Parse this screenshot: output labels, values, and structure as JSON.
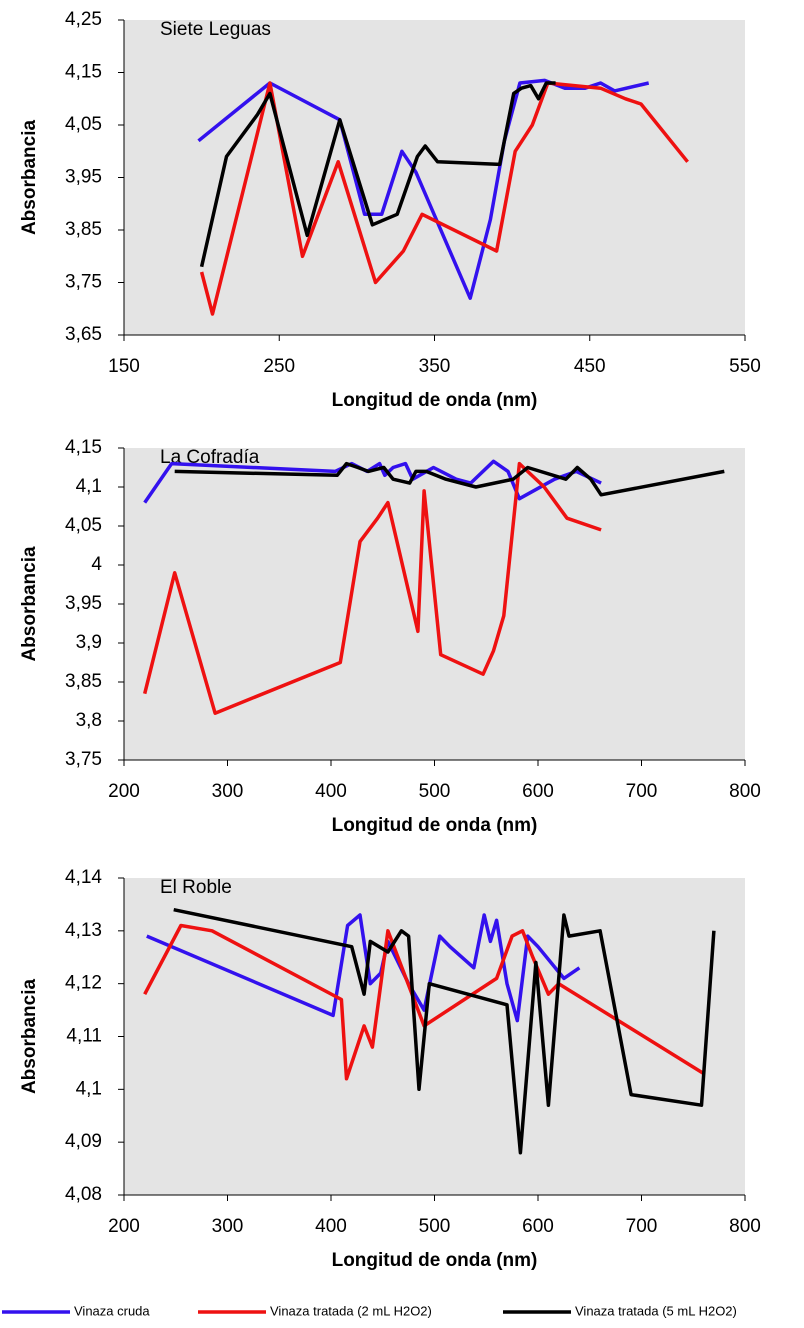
{
  "chart_data": [
    {
      "type": "line",
      "title": "Siete Leguas",
      "xlabel": "Longitud de onda (nm)",
      "ylabel": "Absorbancia",
      "xlim": [
        150,
        550
      ],
      "xticks": [
        150,
        250,
        350,
        450,
        550
      ],
      "ylim": [
        3.65,
        4.25
      ],
      "yticks": [
        {
          "value": 3.65,
          "label": "3,65"
        },
        {
          "value": 3.75,
          "label": "3,75"
        },
        {
          "value": 3.85,
          "label": "3,85"
        },
        {
          "value": 3.95,
          "label": "3,95"
        },
        {
          "value": 4.05,
          "label": "4,05"
        },
        {
          "value": 4.15,
          "label": "4,15"
        },
        {
          "value": 4.25,
          "label": "4,25"
        }
      ],
      "series": [
        {
          "name": "Vinaza cruda",
          "color": "#3311ee",
          "x": [
            198,
            244,
            289,
            305,
            316,
            329,
            338,
            373,
            386,
            395,
            405,
            421,
            434,
            447,
            457,
            466,
            488
          ],
          "values": [
            4.02,
            4.13,
            4.06,
            3.88,
            3.88,
            4.0,
            3.96,
            3.72,
            3.87,
            4.02,
            4.13,
            4.135,
            4.12,
            4.12,
            4.13,
            4.115,
            4.13
          ]
        },
        {
          "name": "Vinaza tratada (2 mL H2O2)",
          "color": "#ee1111",
          "x": [
            200,
            207,
            244,
            265,
            288,
            312,
            330,
            342,
            390,
            402,
            413,
            423,
            457,
            473,
            483,
            513
          ],
          "values": [
            3.77,
            3.69,
            4.13,
            3.8,
            3.98,
            3.75,
            3.81,
            3.88,
            3.81,
            4.0,
            4.05,
            4.13,
            4.12,
            4.1,
            4.09,
            3.98
          ]
        },
        {
          "name": "Vinaza tratada (5 mL H2O2)",
          "color": "#000000",
          "x": [
            200,
            216,
            236,
            244,
            268,
            289,
            310,
            326,
            339,
            344,
            352,
            392,
            401,
            406,
            412,
            417,
            422,
            428
          ],
          "values": [
            3.78,
            3.99,
            4.07,
            4.11,
            3.84,
            4.06,
            3.86,
            3.88,
            3.99,
            4.01,
            3.98,
            3.975,
            4.11,
            4.12,
            4.125,
            4.1,
            4.13,
            4.13
          ]
        }
      ]
    },
    {
      "type": "line",
      "title": "La Cofradía",
      "xlabel": "Longitud de onda (nm)",
      "ylabel": "Absorbancia",
      "xlim": [
        200,
        800
      ],
      "xticks": [
        200,
        300,
        400,
        500,
        600,
        700,
        800
      ],
      "ylim": [
        3.75,
        4.15
      ],
      "yticks": [
        {
          "value": 3.75,
          "label": "3,75"
        },
        {
          "value": 3.8,
          "label": "3,8"
        },
        {
          "value": 3.85,
          "label": "3,85"
        },
        {
          "value": 3.9,
          "label": "3,9"
        },
        {
          "value": 3.95,
          "label": "3,95"
        },
        4,
        {
          "value": 4.05,
          "label": "4,05"
        },
        {
          "value": 4.1,
          "label": "4,1"
        },
        {
          "value": 4.15,
          "label": "4,15"
        }
      ],
      "series": [
        {
          "color": "#3311ee",
          "x": [
            220,
            246,
            404,
            420,
            435,
            447,
            452,
            460,
            472,
            479,
            499,
            521,
            535,
            557,
            571,
            582,
            616,
            637,
            661
          ],
          "values": [
            4.08,
            4.13,
            4.12,
            4.13,
            4.12,
            4.13,
            4.115,
            4.125,
            4.13,
            4.11,
            4.125,
            4.11,
            4.105,
            4.133,
            4.12,
            4.085,
            4.11,
            4.12,
            4.105
          ]
        },
        {
          "color": "#ee1111",
          "x": [
            220,
            249,
            288,
            409,
            428,
            445,
            455,
            484,
            490,
            506,
            547,
            557,
            567,
            582,
            606,
            628,
            661
          ],
          "values": [
            3.835,
            3.99,
            3.81,
            3.875,
            4.03,
            4.06,
            4.08,
            3.915,
            4.095,
            3.885,
            3.86,
            3.89,
            3.935,
            4.13,
            4.1,
            4.06,
            4.045
          ]
        },
        {
          "color": "#000000",
          "x": [
            249,
            406,
            415,
            426,
            436,
            451,
            460,
            476,
            482,
            492,
            511,
            540,
            576,
            590,
            627,
            638,
            651,
            661,
            780
          ],
          "values": [
            4.12,
            4.115,
            4.13,
            4.125,
            4.12,
            4.125,
            4.11,
            4.105,
            4.12,
            4.12,
            4.11,
            4.1,
            4.11,
            4.125,
            4.11,
            4.125,
            4.11,
            4.09,
            4.12
          ]
        }
      ]
    },
    {
      "type": "line",
      "title": "El Roble",
      "xlabel": "Longitud de onda (nm)",
      "ylabel": "Absorbancia",
      "xlim": [
        200,
        800
      ],
      "xticks": [
        200,
        300,
        400,
        500,
        600,
        700,
        800
      ],
      "ylim": [
        4.08,
        4.14
      ],
      "yticks": [
        {
          "value": 4.08,
          "label": "4,08"
        },
        {
          "value": 4.09,
          "label": "4,09"
        },
        {
          "value": 4.1,
          "label": "4,1"
        },
        {
          "value": 4.11,
          "label": "4,11"
        },
        {
          "value": 4.12,
          "label": "4,12"
        },
        {
          "value": 4.13,
          "label": "4,13"
        },
        {
          "value": 4.14,
          "label": "4,14"
        }
      ],
      "series": [
        {
          "color": "#3311ee",
          "x": [
            222,
            402,
            416,
            428,
            438,
            448,
            455,
            475,
            490,
            505,
            515,
            538,
            548,
            554,
            560,
            570,
            580,
            590,
            600,
            625,
            640
          ],
          "values": [
            4.129,
            4.114,
            4.131,
            4.133,
            4.12,
            4.122,
            4.128,
            4.12,
            4.115,
            4.129,
            4.127,
            4.123,
            4.133,
            4.128,
            4.132,
            4.12,
            4.113,
            4.129,
            4.127,
            4.121,
            4.123
          ]
        },
        {
          "color": "#ee1111",
          "x": [
            220,
            255,
            285,
            410,
            415,
            432,
            440,
            455,
            490,
            560,
            575,
            585,
            595,
            610,
            620,
            760
          ],
          "values": [
            4.118,
            4.131,
            4.13,
            4.117,
            4.102,
            4.112,
            4.108,
            4.13,
            4.112,
            4.121,
            4.129,
            4.13,
            4.125,
            4.118,
            4.12,
            4.103
          ]
        },
        {
          "color": "#000000",
          "x": [
            248,
            420,
            432,
            438,
            455,
            468,
            475,
            485,
            495,
            570,
            583,
            598,
            610,
            625,
            630,
            660,
            690,
            758,
            770
          ],
          "values": [
            4.134,
            4.127,
            4.118,
            4.128,
            4.126,
            4.13,
            4.129,
            4.1,
            4.12,
            4.116,
            4.088,
            4.124,
            4.097,
            4.133,
            4.129,
            4.13,
            4.099,
            4.097,
            4.13
          ]
        }
      ]
    }
  ]
}
